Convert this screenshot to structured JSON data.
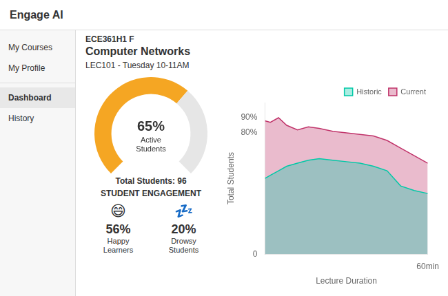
{
  "title": "Engage AI",
  "annotations": [
    "My Courses",
    "My Profile",
    "Dashboard",
    "History",
    "ECE361H1 F",
    "Computer Networks",
    "LEC101 - Tuesday 10-11AM"
  ],
  "chart_data": [
    {
      "type": "doughnut",
      "values": [
        65
      ],
      "value_labels": [
        "65%"
      ],
      "ylim": [
        0,
        100
      ],
      "color": "#f5a623",
      "annotations": [
        "Active",
        "Students"
      ],
      "subtitle": "Total Students: 96"
    },
    {
      "type": "stat",
      "title": "STUDENT ENGAGEMENT",
      "categories": [
        "Happy\nLearners",
        "Drowsy\nStudents"
      ],
      "values": [
        56,
        20
      ],
      "value_labels": [
        "56%",
        "20%"
      ],
      "annotations": [
        "😄",
        "💤"
      ]
    },
    {
      "type": "line",
      "x": [
        0,
        2,
        5,
        8,
        12,
        16,
        20,
        25,
        30,
        35,
        40,
        45,
        50,
        55,
        60
      ],
      "series": [
        {
          "name": "Current",
          "color": "#c0336a",
          "values": [
            88,
            87,
            90,
            85,
            82,
            84,
            83,
            81,
            80,
            79,
            78,
            75,
            70,
            65,
            60
          ]
        },
        {
          "name": "Historic",
          "color": "#00c9a7",
          "values": [
            50,
            52,
            55,
            58,
            60,
            62,
            63,
            62,
            61,
            60,
            58,
            55,
            45,
            42,
            40
          ]
        }
      ],
      "x_label": "Lecture Duration",
      "y_label": "Total Students",
      "xlim": [
        0,
        60
      ],
      "xticks": [
        {
          "value": 60,
          "label": "60min"
        }
      ],
      "ylim": [
        0,
        100
      ],
      "yticks": [
        0,
        {
          "value": 80,
          "label": "80%"
        },
        {
          "value": 90,
          "label": "90%"
        }
      ],
      "grid": false,
      "legend": "upper right"
    }
  ]
}
